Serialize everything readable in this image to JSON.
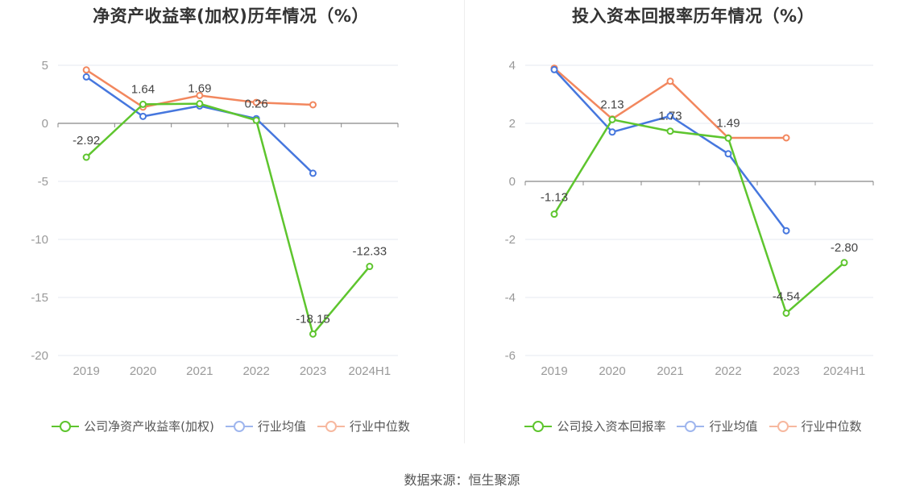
{
  "source_label": "数据来源：恒生聚源",
  "colors": {
    "company": "#5ec52e",
    "avg": "#4677de",
    "median": "#f2875e",
    "axis": "#888888",
    "grid": "#e6e8f0",
    "text": "#999999"
  },
  "chart_data": [
    {
      "type": "line",
      "title": "净资产收益率(加权)历年情况（%）",
      "categories": [
        "2019",
        "2020",
        "2021",
        "2022",
        "2023",
        "2024H1"
      ],
      "ylim": [
        -20,
        5
      ],
      "yticks": [
        5,
        0,
        -5,
        -10,
        -15,
        -20
      ],
      "grid": true,
      "legend_position": "bottom",
      "series": [
        {
          "name": "公司净资产收益率(加权)",
          "role": "company",
          "values": [
            -2.92,
            1.64,
            1.69,
            0.26,
            -18.15,
            -12.33
          ],
          "labels": [
            "-2.92",
            "1.64",
            "1.69",
            "0.26",
            "-18.15",
            "-12.33"
          ]
        },
        {
          "name": "行业均值",
          "role": "avg",
          "values": [
            4.0,
            0.6,
            1.5,
            0.4,
            -4.3,
            null
          ]
        },
        {
          "name": "行业中位数",
          "role": "median",
          "values": [
            4.6,
            1.4,
            2.4,
            1.8,
            1.6,
            null
          ]
        }
      ]
    },
    {
      "type": "line",
      "title": "投入资本回报率历年情况（%）",
      "categories": [
        "2019",
        "2020",
        "2021",
        "2022",
        "2023",
        "2024H1"
      ],
      "ylim": [
        -6,
        4
      ],
      "yticks": [
        4,
        2,
        0,
        -2,
        -4,
        -6
      ],
      "grid": true,
      "legend_position": "bottom",
      "series": [
        {
          "name": "公司投入资本回报率",
          "role": "company",
          "values": [
            -1.13,
            2.13,
            1.73,
            1.49,
            -4.54,
            -2.8
          ],
          "labels": [
            "-1.13",
            "2.13",
            "1.73",
            "1.49",
            "-4.54",
            "-2.80"
          ]
        },
        {
          "name": "行业均值",
          "role": "avg",
          "values": [
            3.85,
            1.7,
            2.25,
            0.95,
            -1.7,
            null
          ]
        },
        {
          "name": "行业中位数",
          "role": "median",
          "values": [
            3.9,
            2.15,
            3.45,
            1.5,
            1.5,
            null
          ]
        }
      ]
    }
  ]
}
